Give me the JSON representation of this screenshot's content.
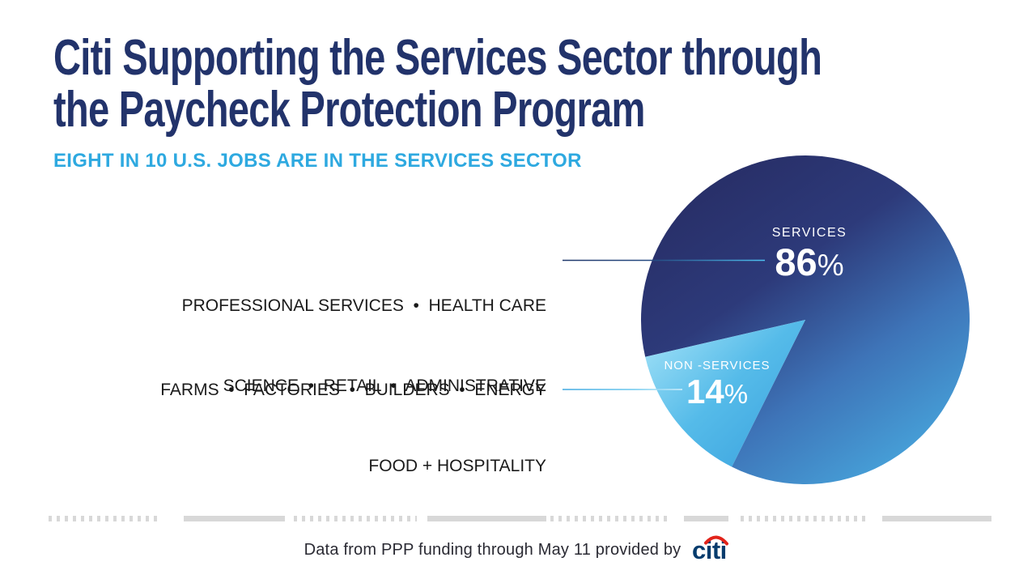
{
  "header": {
    "title_line1": "Citi Supporting the Services Sector through",
    "title_line2": "the Paycheck Protection Program",
    "subtitle": "EIGHT IN 10 U.S. JOBS ARE IN THE SERVICES SECTOR"
  },
  "callouts": {
    "services_examples": [
      "PROFESSIONAL SERVICES  •  HEALTH CARE",
      "SCIENCE  •  RETAIL  •  ADMINISTRATIVE",
      "FOOD + HOSPITALITY"
    ],
    "non_services_examples": "FARMS  •  FACTORIES  •  BUILDERS  •  ENERGY"
  },
  "chart_data": {
    "type": "pie",
    "categories": [
      "SERVICES",
      "NON -SERVICES"
    ],
    "values": [
      86,
      14
    ],
    "start_angle_deg": 167,
    "legend_position": "inside",
    "grid": false,
    "percent_sign": "%",
    "slices": [
      {
        "id": "services",
        "label": "SERVICES",
        "value_pct": 86,
        "display_value": "86",
        "colors": [
          "#282f68",
          "#2d3a7a",
          "#3e74b8",
          "#47a4db"
        ]
      },
      {
        "id": "nonservices",
        "label": "NON -SERVICES",
        "value_pct": 14,
        "display_value": "14",
        "colors": [
          "#97dcf5",
          "#55bbe9",
          "#3fa6e0"
        ]
      }
    ]
  },
  "footer": {
    "attribution": "Data from PPP funding through May 11 provided by",
    "logo_text": "citi"
  },
  "colors": {
    "title": "#22336b",
    "subtitle": "#2ea9e0",
    "label_text": "#1a1a1a",
    "leader_navy": "#20386b",
    "leader_blue": "#4ec2f2",
    "strip_gray": "#d8d8d8",
    "footer_text": "#2a2a33",
    "citi_blue": "#063c6d",
    "citi_red": "#e2231a",
    "pie_label_text": "#ffffff"
  }
}
